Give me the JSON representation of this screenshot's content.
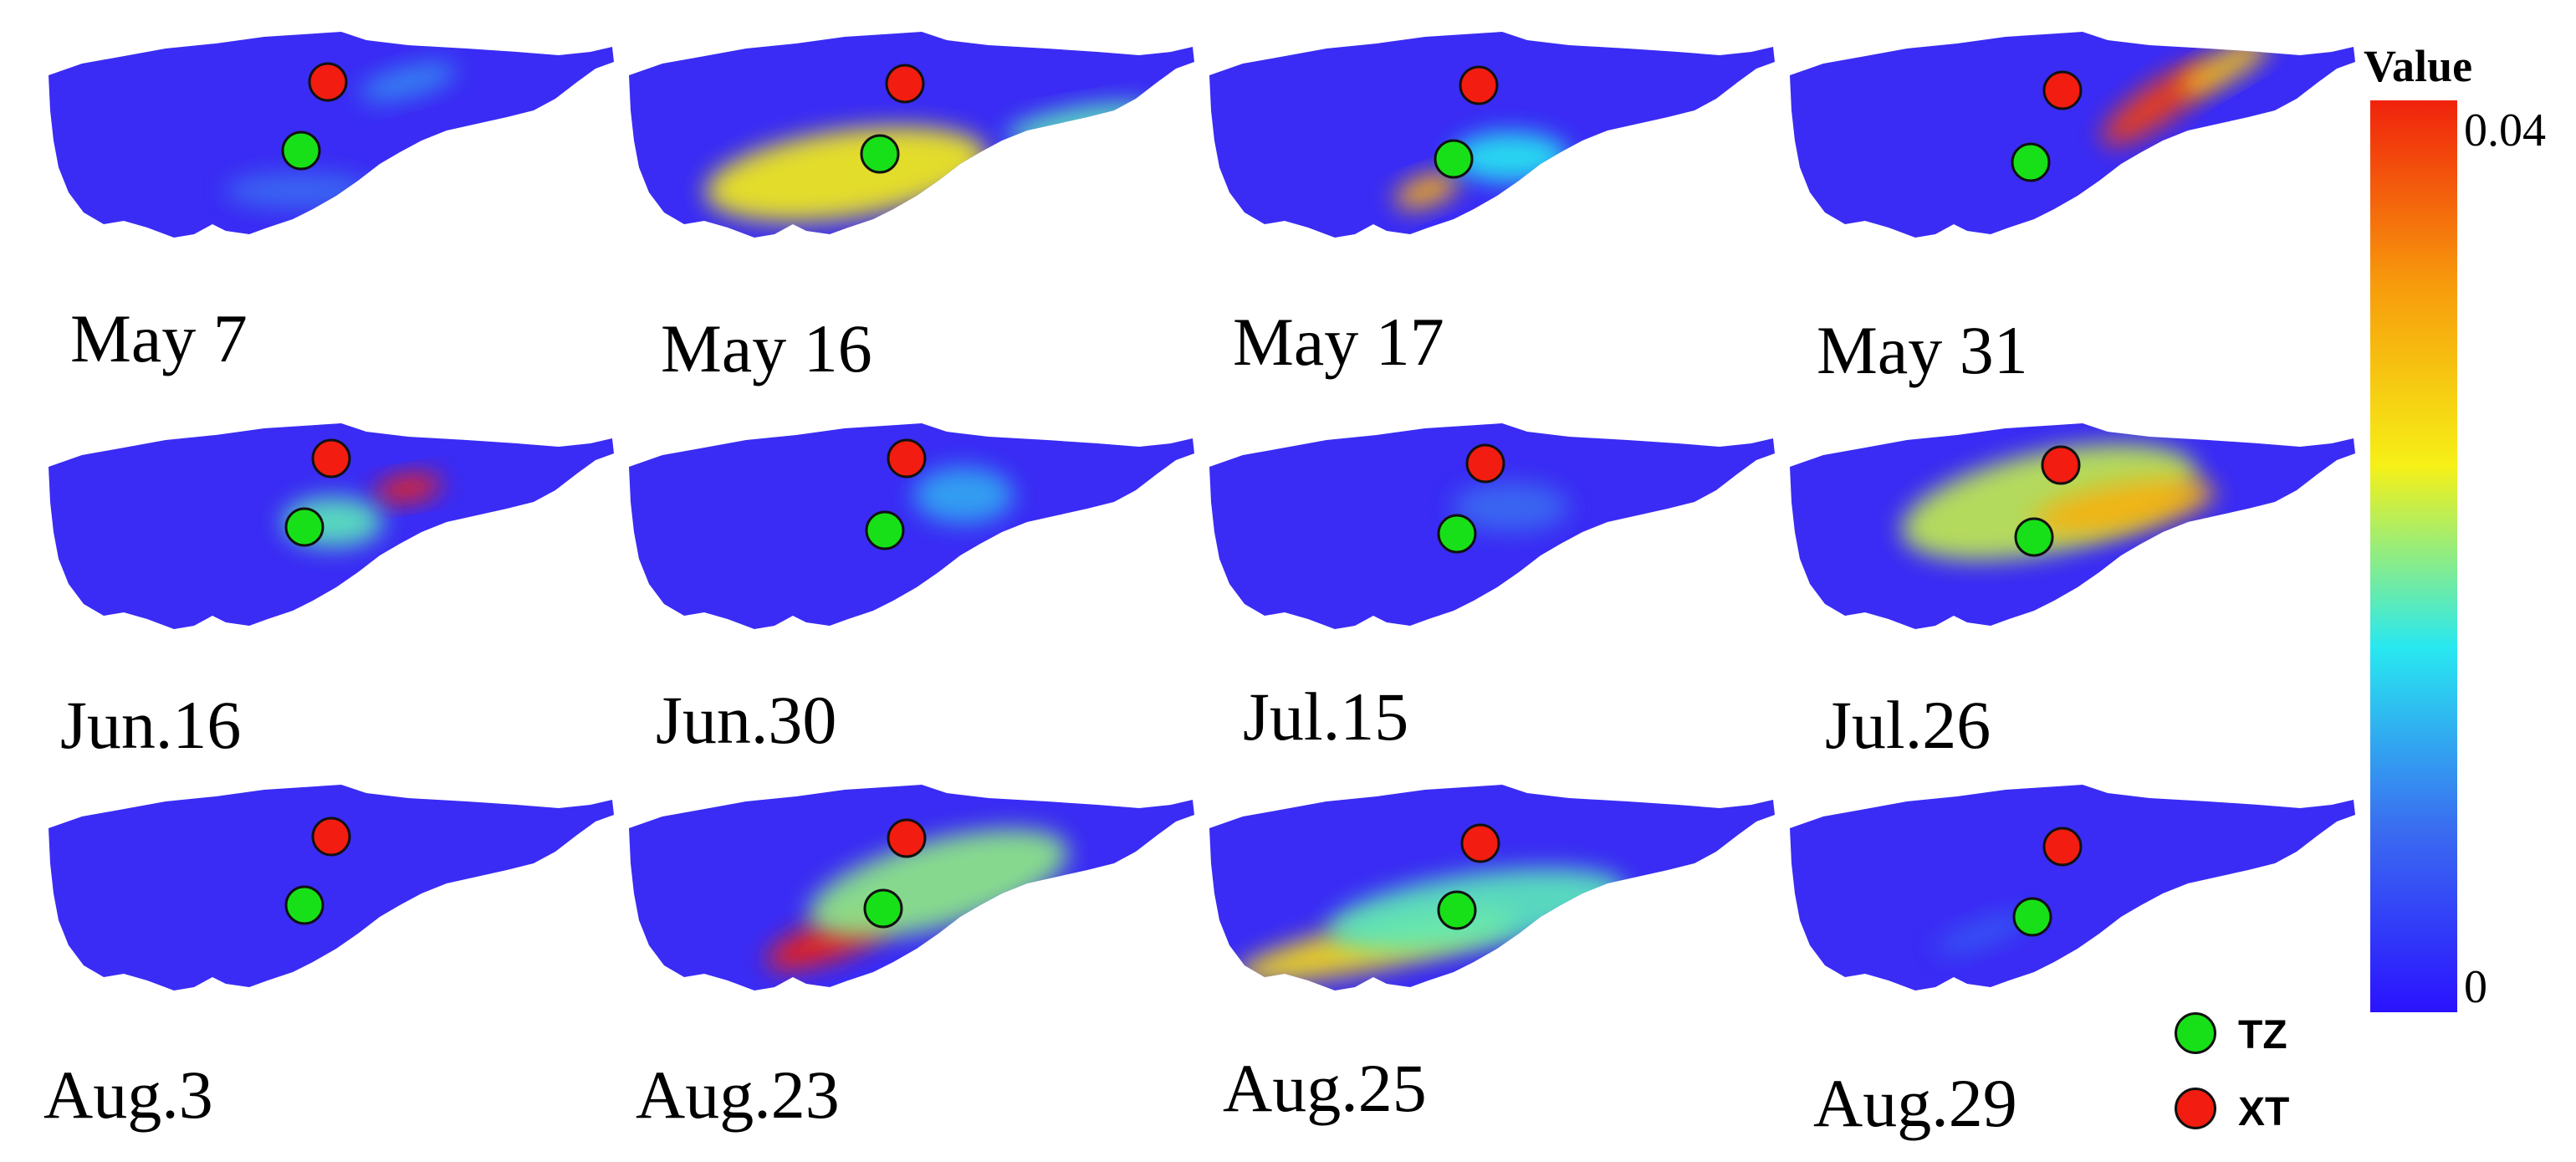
{
  "panels": [
    {
      "date": "May 7",
      "hotspots": [
        {
          "level": 0.01
        },
        {
          "level": 0.008
        }
      ]
    },
    {
      "date": "May 16",
      "hotspots": [
        {
          "level": 0.024
        },
        {
          "level": 0.018
        }
      ]
    },
    {
      "date": "May 17",
      "hotspots": [
        {
          "level": 0.03
        },
        {
          "level": 0.016
        }
      ]
    },
    {
      "date": "May 31",
      "hotspots": [
        {
          "level": 0.038
        },
        {
          "level": 0.028
        }
      ]
    },
    {
      "date": "Jun.16",
      "hotspots": [
        {
          "level": 0.04
        },
        {
          "level": 0.018
        }
      ]
    },
    {
      "date": "Jun.30",
      "hotspots": [
        {
          "level": 0.012
        }
      ]
    },
    {
      "date": "Jul.15",
      "hotspots": [
        {
          "level": 0.008
        }
      ]
    },
    {
      "date": "Jul.26",
      "hotspots": [
        {
          "level": 0.022
        },
        {
          "level": 0.03
        }
      ]
    },
    {
      "date": "Aug.3",
      "hotspots": []
    },
    {
      "date": "Aug.23",
      "hotspots": [
        {
          "level": 0.04
        },
        {
          "level": 0.02
        }
      ]
    },
    {
      "date": "Aug.25",
      "hotspots": [
        {
          "level": 0.026
        },
        {
          "level": 0.018
        }
      ]
    },
    {
      "date": "Aug.29",
      "hotspots": [
        {
          "level": 0.006
        }
      ]
    }
  ],
  "colorbar": {
    "title": "Value",
    "max_label": "0.04",
    "min_label": "0",
    "stops": [
      "#2a12ff",
      "#3a6cf0",
      "#28e8f0",
      "#f6f016",
      "#f79a0c",
      "#f0220c"
    ]
  },
  "legend": [
    {
      "label": "TZ",
      "color": "#18e018"
    },
    {
      "label": "XT",
      "color": "#f21c10"
    }
  ],
  "map_base_color": "#3a2cf4"
}
